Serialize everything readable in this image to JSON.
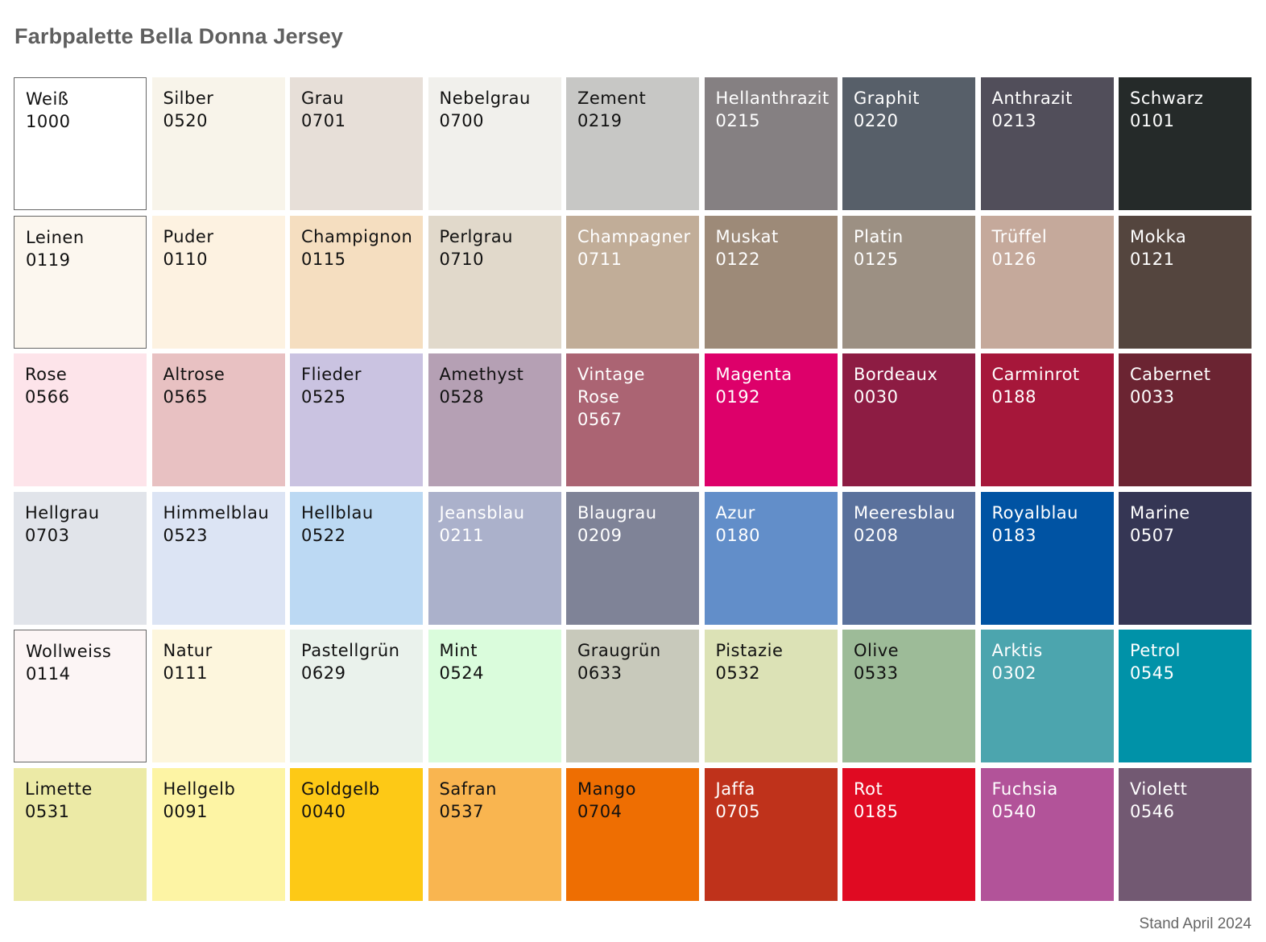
{
  "title": "Farbpalette Bella Donna Jersey",
  "footer": "Stand April 2024",
  "colors": [
    {
      "name": "Weiß",
      "code": "1000",
      "hex": "#ffffff",
      "text": "#111111",
      "bordered": true
    },
    {
      "name": "Silber",
      "code": "0520",
      "hex": "#f8f4ea",
      "text": "#111111"
    },
    {
      "name": "Grau",
      "code": "0701",
      "hex": "#e7dfd8",
      "text": "#111111"
    },
    {
      "name": "Nebelgrau",
      "code": "0700",
      "hex": "#f1f0ec",
      "text": "#111111"
    },
    {
      "name": "Zement",
      "code": "0219",
      "hex": "#c7c7c5",
      "text": "#111111"
    },
    {
      "name": "Hellanthrazit",
      "code": "0215",
      "hex": "#858082",
      "text": "#ffffff"
    },
    {
      "name": "Graphit",
      "code": "0220",
      "hex": "#575f69",
      "text": "#ffffff"
    },
    {
      "name": "Anthrazit",
      "code": "0213",
      "hex": "#514e5a",
      "text": "#ffffff"
    },
    {
      "name": "Schwarz",
      "code": "0101",
      "hex": "#252a29",
      "text": "#ffffff"
    },
    {
      "name": "Leinen",
      "code": "0119",
      "hex": "#fcf7ef",
      "text": "#111111",
      "bordered": true
    },
    {
      "name": "Puder",
      "code": "0110",
      "hex": "#fdf2e1",
      "text": "#111111"
    },
    {
      "name": "Champignon",
      "code": "0115",
      "hex": "#f5dec0",
      "text": "#111111"
    },
    {
      "name": "Perlgrau",
      "code": "0710",
      "hex": "#e1d9cb",
      "text": "#111111"
    },
    {
      "name": "Champagner",
      "code": "0711",
      "hex": "#c1ad98",
      "text": "#ffffff"
    },
    {
      "name": "Muskat",
      "code": "0122",
      "hex": "#9d8a78",
      "text": "#ffffff"
    },
    {
      "name": "Platin",
      "code": "0125",
      "hex": "#9c9083",
      "text": "#ffffff"
    },
    {
      "name": "Trüffel",
      "code": "0126",
      "hex": "#c5a99b",
      "text": "#ffffff"
    },
    {
      "name": "Mokka",
      "code": "0121",
      "hex": "#54453e",
      "text": "#ffffff"
    },
    {
      "name": "Rose",
      "code": "0566",
      "hex": "#fde4ea",
      "text": "#111111"
    },
    {
      "name": "Altrose",
      "code": "0565",
      "hex": "#e8c1c2",
      "text": "#111111"
    },
    {
      "name": "Flieder",
      "code": "0525",
      "hex": "#cac3e1",
      "text": "#111111"
    },
    {
      "name": "Amethyst",
      "code": "0528",
      "hex": "#b5a0b4",
      "text": "#111111"
    },
    {
      "name": "Vintage Rose",
      "code": "0567",
      "hex": "#ab6473",
      "text": "#ffffff"
    },
    {
      "name": "Magenta",
      "code": "0192",
      "hex": "#dd006a",
      "text": "#ffffff"
    },
    {
      "name": "Bordeaux",
      "code": "0030",
      "hex": "#8d1c43",
      "text": "#ffffff"
    },
    {
      "name": "Carminrot",
      "code": "0188",
      "hex": "#a6173a",
      "text": "#ffffff"
    },
    {
      "name": "Cabernet",
      "code": "0033",
      "hex": "#6b2432",
      "text": "#ffffff"
    },
    {
      "name": "Hellgrau",
      "code": "0703",
      "hex": "#e1e4ea",
      "text": "#111111"
    },
    {
      "name": "Himmelblau",
      "code": "0523",
      "hex": "#dce4f4",
      "text": "#111111"
    },
    {
      "name": "Hellblau",
      "code": "0522",
      "hex": "#bcd9f3",
      "text": "#111111"
    },
    {
      "name": "Jeansblau",
      "code": "0211",
      "hex": "#abb1cb",
      "text": "#ffffff"
    },
    {
      "name": "Blaugrau",
      "code": "0209",
      "hex": "#7f8397",
      "text": "#ffffff"
    },
    {
      "name": "Azur",
      "code": "0180",
      "hex": "#628ec9",
      "text": "#ffffff"
    },
    {
      "name": "Meeresblau",
      "code": "0208",
      "hex": "#5a719c",
      "text": "#ffffff"
    },
    {
      "name": "Royalblau",
      "code": "0183",
      "hex": "#0053a3",
      "text": "#ffffff"
    },
    {
      "name": "Marine",
      "code": "0507",
      "hex": "#353654",
      "text": "#ffffff"
    },
    {
      "name": "Wollweiss",
      "code": "0114",
      "hex": "#fcf5f5",
      "text": "#111111",
      "bordered": true
    },
    {
      "name": "Natur",
      "code": "0111",
      "hex": "#fdf6dd",
      "text": "#111111"
    },
    {
      "name": "Pastellgrün",
      "code": "0629",
      "hex": "#eaf2ec",
      "text": "#111111"
    },
    {
      "name": "Mint",
      "code": "0524",
      "hex": "#dafcdc",
      "text": "#111111"
    },
    {
      "name": "Graugrün",
      "code": "0633",
      "hex": "#c8c9bb",
      "text": "#111111"
    },
    {
      "name": "Pistazie",
      "code": "0532",
      "hex": "#dce2b6",
      "text": "#111111"
    },
    {
      "name": "Olive",
      "code": "0533",
      "hex": "#9dbb98",
      "text": "#111111"
    },
    {
      "name": "Arktis",
      "code": "0302",
      "hex": "#4ca5ae",
      "text": "#ffffff"
    },
    {
      "name": "Petrol",
      "code": "0545",
      "hex": "#0092a8",
      "text": "#ffffff"
    },
    {
      "name": "Limette",
      "code": "0531",
      "hex": "#eceaa6",
      "text": "#111111"
    },
    {
      "name": "Hellgelb",
      "code": "0091",
      "hex": "#fdf4a4",
      "text": "#111111"
    },
    {
      "name": "Goldgelb",
      "code": "0040",
      "hex": "#fdc916",
      "text": "#111111"
    },
    {
      "name": "Safran",
      "code": "0537",
      "hex": "#f9b550",
      "text": "#111111"
    },
    {
      "name": "Mango",
      "code": "0704",
      "hex": "#ee6e02",
      "text": "#111111"
    },
    {
      "name": "Jaffa",
      "code": "0705",
      "hex": "#bf321b",
      "text": "#ffffff"
    },
    {
      "name": "Rot",
      "code": "0185",
      "hex": "#e00a22",
      "text": "#ffffff"
    },
    {
      "name": "Fuchsia",
      "code": "0540",
      "hex": "#b25399",
      "text": "#ffffff"
    },
    {
      "name": "Violett",
      "code": "0546",
      "hex": "#725972",
      "text": "#ffffff"
    }
  ]
}
